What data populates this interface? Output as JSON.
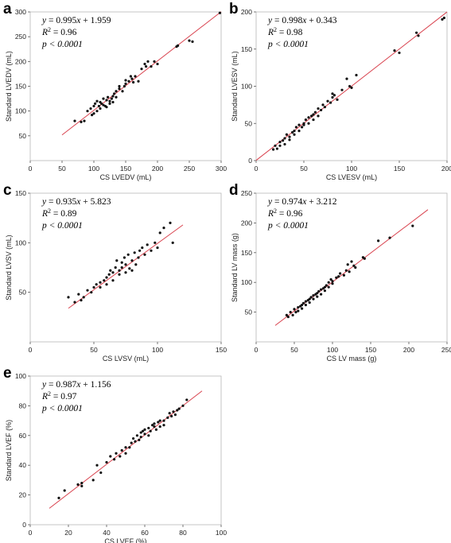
{
  "chart_data": [
    {
      "type": "scatter",
      "panel": "a",
      "xlabel": "CS LVEDV (mL)",
      "ylabel": "Standard LVEDV (mL)",
      "xlim": [
        0,
        300
      ],
      "ylim": [
        0,
        300
      ],
      "xticks": [
        0,
        50,
        100,
        150,
        200,
        250,
        300
      ],
      "yticks": [
        50,
        100,
        150,
        200,
        250,
        300
      ],
      "equation": {
        "slope": "0.995",
        "intercept": "1.959"
      },
      "r2": "0.96",
      "p": "p < 0.0001",
      "fit": {
        "slope": 0.995,
        "intercept": 1.959,
        "x_range": [
          50,
          300
        ]
      },
      "points": [
        [
          70,
          80
        ],
        [
          80,
          78
        ],
        [
          85,
          80
        ],
        [
          90,
          100
        ],
        [
          95,
          105
        ],
        [
          97,
          92
        ],
        [
          100,
          110
        ],
        [
          100,
          95
        ],
        [
          102,
          115
        ],
        [
          105,
          100
        ],
        [
          105,
          120
        ],
        [
          108,
          110
        ],
        [
          110,
          105
        ],
        [
          110,
          118
        ],
        [
          112,
          115
        ],
        [
          115,
          112
        ],
        [
          115,
          125
        ],
        [
          118,
          110
        ],
        [
          120,
          122
        ],
        [
          120,
          108
        ],
        [
          122,
          128
        ],
        [
          125,
          120
        ],
        [
          125,
          115
        ],
        [
          128,
          125
        ],
        [
          130,
          130
        ],
        [
          130,
          118
        ],
        [
          132,
          135
        ],
        [
          135,
          140
        ],
        [
          135,
          128
        ],
        [
          140,
          145
        ],
        [
          140,
          150
        ],
        [
          145,
          140
        ],
        [
          148,
          150
        ],
        [
          150,
          155
        ],
        [
          150,
          162
        ],
        [
          155,
          160
        ],
        [
          158,
          170
        ],
        [
          160,
          165
        ],
        [
          162,
          158
        ],
        [
          165,
          170
        ],
        [
          170,
          160
        ],
        [
          175,
          185
        ],
        [
          180,
          195
        ],
        [
          182,
          190
        ],
        [
          185,
          200
        ],
        [
          190,
          190
        ],
        [
          195,
          200
        ],
        [
          200,
          195
        ],
        [
          230,
          230
        ],
        [
          232,
          232
        ],
        [
          250,
          242
        ],
        [
          255,
          240
        ],
        [
          298,
          298
        ]
      ]
    },
    {
      "type": "scatter",
      "panel": "b",
      "xlabel": "CS LVESV (mL)",
      "ylabel": "Standard LVESV (mL)",
      "xlim": [
        0,
        200
      ],
      "ylim": [
        0,
        200
      ],
      "xticks": [
        0,
        50,
        100,
        150,
        200
      ],
      "yticks": [
        0,
        50,
        100,
        150,
        200
      ],
      "equation": {
        "slope": "0.998",
        "intercept": "0.343"
      },
      "r2": "0.98",
      "p": "p < 0.0001",
      "fit": {
        "slope": 0.998,
        "intercept": 0.343,
        "x_range": [
          0,
          200
        ]
      },
      "points": [
        [
          18,
          15
        ],
        [
          20,
          20
        ],
        [
          22,
          16
        ],
        [
          25,
          25
        ],
        [
          25,
          20
        ],
        [
          28,
          27
        ],
        [
          30,
          30
        ],
        [
          30,
          22
        ],
        [
          32,
          35
        ],
        [
          35,
          32
        ],
        [
          35,
          28
        ],
        [
          38,
          38
        ],
        [
          40,
          35
        ],
        [
          40,
          40
        ],
        [
          42,
          45
        ],
        [
          45,
          40
        ],
        [
          45,
          48
        ],
        [
          48,
          45
        ],
        [
          50,
          50
        ],
        [
          50,
          48
        ],
        [
          52,
          55
        ],
        [
          55,
          50
        ],
        [
          55,
          58
        ],
        [
          58,
          60
        ],
        [
          60,
          55
        ],
        [
          60,
          62
        ],
        [
          62,
          65
        ],
        [
          65,
          70
        ],
        [
          65,
          60
        ],
        [
          68,
          68
        ],
        [
          70,
          75
        ],
        [
          72,
          72
        ],
        [
          75,
          80
        ],
        [
          78,
          78
        ],
        [
          80,
          85
        ],
        [
          80,
          90
        ],
        [
          82,
          88
        ],
        [
          85,
          82
        ],
        [
          90,
          95
        ],
        [
          95,
          110
        ],
        [
          98,
          100
        ],
        [
          100,
          98
        ],
        [
          105,
          115
        ],
        [
          145,
          148
        ],
        [
          150,
          145
        ],
        [
          168,
          172
        ],
        [
          170,
          168
        ],
        [
          195,
          190
        ],
        [
          197,
          192
        ]
      ]
    },
    {
      "type": "scatter",
      "panel": "c",
      "xlabel": "CS LVSV (mL)",
      "ylabel": "Standard LVSV (mL)",
      "xlim": [
        0,
        150
      ],
      "ylim": [
        0,
        150
      ],
      "xticks": [
        0,
        50,
        100,
        150
      ],
      "yticks": [
        50,
        100,
        150
      ],
      "equation": {
        "slope": "0.935",
        "intercept": "5.823"
      },
      "r2": "0.89",
      "p": "p < 0.0001",
      "fit": {
        "slope": 0.935,
        "intercept": 5.823,
        "x_range": [
          30,
          120
        ]
      },
      "points": [
        [
          30,
          45
        ],
        [
          35,
          40
        ],
        [
          38,
          48
        ],
        [
          40,
          42
        ],
        [
          42,
          45
        ],
        [
          45,
          52
        ],
        [
          48,
          50
        ],
        [
          50,
          55
        ],
        [
          52,
          58
        ],
        [
          55,
          60
        ],
        [
          55,
          55
        ],
        [
          58,
          62
        ],
        [
          60,
          65
        ],
        [
          60,
          58
        ],
        [
          62,
          68
        ],
        [
          63,
          72
        ],
        [
          65,
          70
        ],
        [
          65,
          62
        ],
        [
          67,
          75
        ],
        [
          68,
          82
        ],
        [
          70,
          72
        ],
        [
          70,
          68
        ],
        [
          72,
          80
        ],
        [
          72,
          75
        ],
        [
          74,
          85
        ],
        [
          75,
          78
        ],
        [
          75,
          70
        ],
        [
          77,
          88
        ],
        [
          78,
          74
        ],
        [
          80,
          82
        ],
        [
          80,
          72
        ],
        [
          82,
          90
        ],
        [
          83,
          78
        ],
        [
          85,
          85
        ],
        [
          86,
          92
        ],
        [
          88,
          95
        ],
        [
          90,
          88
        ],
        [
          92,
          98
        ],
        [
          95,
          92
        ],
        [
          98,
          100
        ],
        [
          100,
          95
        ],
        [
          102,
          110
        ],
        [
          105,
          115
        ],
        [
          110,
          120
        ],
        [
          112,
          100
        ]
      ]
    },
    {
      "type": "scatter",
      "panel": "d",
      "xlabel": "CS LV mass (g)",
      "ylabel": "Standard LV mass (g)",
      "xlim": [
        0,
        250
      ],
      "ylim": [
        0,
        250
      ],
      "xticks": [
        0,
        50,
        100,
        150,
        200,
        250
      ],
      "yticks": [
        50,
        100,
        150,
        200,
        250
      ],
      "equation": {
        "slope": "0.974",
        "intercept": "3.212"
      },
      "r2": "0.96",
      "p": "p < 0.0001",
      "fit": {
        "slope": 0.974,
        "intercept": 3.212,
        "x_range": [
          25,
          225
        ]
      },
      "points": [
        [
          40,
          45
        ],
        [
          42,
          42
        ],
        [
          45,
          50
        ],
        [
          48,
          45
        ],
        [
          50,
          55
        ],
        [
          52,
          50
        ],
        [
          55,
          58
        ],
        [
          55,
          52
        ],
        [
          58,
          60
        ],
        [
          60,
          62
        ],
        [
          60,
          56
        ],
        [
          62,
          65
        ],
        [
          65,
          68
        ],
        [
          65,
          62
        ],
        [
          68,
          70
        ],
        [
          70,
          72
        ],
        [
          70,
          66
        ],
        [
          72,
          75
        ],
        [
          75,
          78
        ],
        [
          75,
          72
        ],
        [
          78,
          80
        ],
        [
          80,
          82
        ],
        [
          80,
          76
        ],
        [
          82,
          85
        ],
        [
          85,
          88
        ],
        [
          85,
          80
        ],
        [
          88,
          90
        ],
        [
          90,
          92
        ],
        [
          90,
          86
        ],
        [
          92,
          95
        ],
        [
          95,
          100
        ],
        [
          95,
          92
        ],
        [
          98,
          105
        ],
        [
          100,
          102
        ],
        [
          100,
          98
        ],
        [
          105,
          108
        ],
        [
          108,
          110
        ],
        [
          110,
          115
        ],
        [
          115,
          112
        ],
        [
          118,
          120
        ],
        [
          120,
          130
        ],
        [
          122,
          118
        ],
        [
          125,
          135
        ],
        [
          128,
          128
        ],
        [
          130,
          125
        ],
        [
          140,
          142
        ],
        [
          142,
          140
        ],
        [
          160,
          170
        ],
        [
          175,
          175
        ],
        [
          205,
          195
        ]
      ]
    },
    {
      "type": "scatter",
      "panel": "e",
      "xlabel": "CS LVEF (%)",
      "ylabel": "Standard LVEF (%)",
      "xlim": [
        0,
        100
      ],
      "ylim": [
        0,
        100
      ],
      "xticks": [
        0,
        20,
        40,
        60,
        80,
        100
      ],
      "yticks": [
        0,
        20,
        40,
        60,
        80,
        100
      ],
      "equation": {
        "slope": "0.987",
        "intercept": "1.156"
      },
      "r2": "0.97",
      "p": "p < 0.0001",
      "fit": {
        "slope": 0.987,
        "intercept": 1.156,
        "x_range": [
          10,
          90
        ]
      },
      "points": [
        [
          15,
          18
        ],
        [
          18,
          23
        ],
        [
          25,
          27
        ],
        [
          27,
          28
        ],
        [
          27,
          26
        ],
        [
          33,
          30
        ],
        [
          35,
          40
        ],
        [
          37,
          35
        ],
        [
          40,
          42
        ],
        [
          42,
          46
        ],
        [
          44,
          44
        ],
        [
          45,
          48
        ],
        [
          47,
          46
        ],
        [
          48,
          50
        ],
        [
          50,
          52
        ],
        [
          50,
          48
        ],
        [
          52,
          52
        ],
        [
          53,
          55
        ],
        [
          54,
          58
        ],
        [
          55,
          56
        ],
        [
          56,
          60
        ],
        [
          57,
          57
        ],
        [
          58,
          62
        ],
        [
          58,
          59
        ],
        [
          59,
          63
        ],
        [
          60,
          61
        ],
        [
          60,
          64
        ],
        [
          62,
          60
        ],
        [
          62,
          65
        ],
        [
          63,
          63
        ],
        [
          64,
          67
        ],
        [
          65,
          66
        ],
        [
          65,
          68
        ],
        [
          66,
          64
        ],
        [
          67,
          69
        ],
        [
          68,
          66
        ],
        [
          68,
          70
        ],
        [
          70,
          70
        ],
        [
          70,
          67
        ],
        [
          72,
          72
        ],
        [
          73,
          75
        ],
        [
          74,
          73
        ],
        [
          75,
          76
        ],
        [
          76,
          74
        ],
        [
          77,
          77
        ],
        [
          78,
          78
        ],
        [
          80,
          80
        ],
        [
          82,
          84
        ]
      ]
    }
  ]
}
